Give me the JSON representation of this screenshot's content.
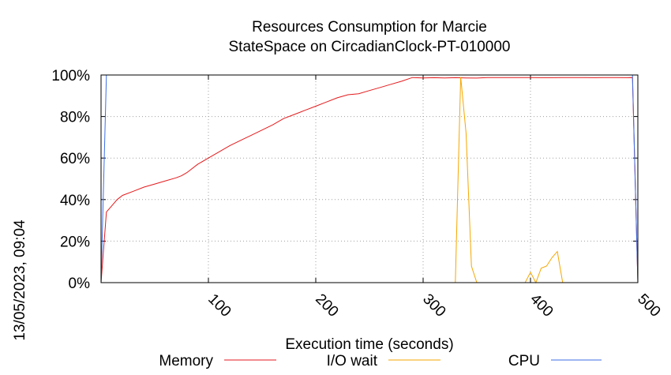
{
  "chart_data": {
    "type": "line",
    "title": [
      "Resources Consumption for Marcie",
      "StateSpace on CircadianClock-PT-010000"
    ],
    "xlabel": "Execution time (seconds)",
    "ylabel": "",
    "side_label": "13/05/2023, 09:04",
    "xlim": [
      0,
      500
    ],
    "ylim": [
      0,
      100
    ],
    "x_ticks": [
      100,
      200,
      300,
      400,
      500
    ],
    "y_ticks": [
      0,
      20,
      40,
      60,
      80,
      100
    ],
    "y_tick_labels": [
      "0%",
      "20%",
      "40%",
      "60%",
      "80%",
      "100%"
    ],
    "grid": true,
    "legend_position": "bottom",
    "series": [
      {
        "name": "Memory",
        "color": "#e41a1c",
        "x": [
          0,
          5,
          10,
          15,
          20,
          30,
          40,
          50,
          60,
          70,
          75,
          80,
          90,
          100,
          110,
          120,
          130,
          140,
          150,
          160,
          170,
          180,
          190,
          200,
          210,
          220,
          230,
          240,
          250,
          260,
          270,
          280,
          290,
          300,
          310,
          320,
          330,
          340,
          350,
          360,
          370,
          380,
          390,
          400,
          410,
          420,
          430,
          440,
          450,
          460,
          470,
          480,
          490,
          495,
          500
        ],
        "y": [
          0,
          34,
          37,
          40,
          42,
          44,
          46,
          47.5,
          49,
          50.5,
          51.5,
          53,
          57,
          60,
          63,
          66,
          68.5,
          71,
          73.5,
          76,
          79,
          81,
          83,
          85,
          87,
          89,
          90.5,
          91,
          92.5,
          94,
          95.5,
          97,
          98.8,
          98.6,
          98.7,
          98.6,
          98.7,
          98.6,
          98.5,
          98.8,
          98.8,
          98.8,
          98.8,
          98.8,
          98.7,
          98.7,
          98.8,
          98.8,
          98.8,
          98.7,
          98.8,
          98.8,
          98.7,
          98.8,
          0
        ]
      },
      {
        "name": "I/O wait",
        "color": "#f5a700",
        "x": [
          330,
          335,
          340,
          345,
          350,
          395,
          400,
          405,
          410,
          415,
          420,
          425,
          430,
          435
        ],
        "y": [
          0,
          99,
          72,
          8,
          0,
          0,
          5,
          0,
          7,
          8,
          12,
          15,
          0,
          0
        ]
      },
      {
        "name": "CPU",
        "color": "#3c6ee6",
        "x": [
          0,
          5,
          495,
          500
        ],
        "y": [
          0,
          100,
          100,
          0
        ]
      }
    ]
  }
}
